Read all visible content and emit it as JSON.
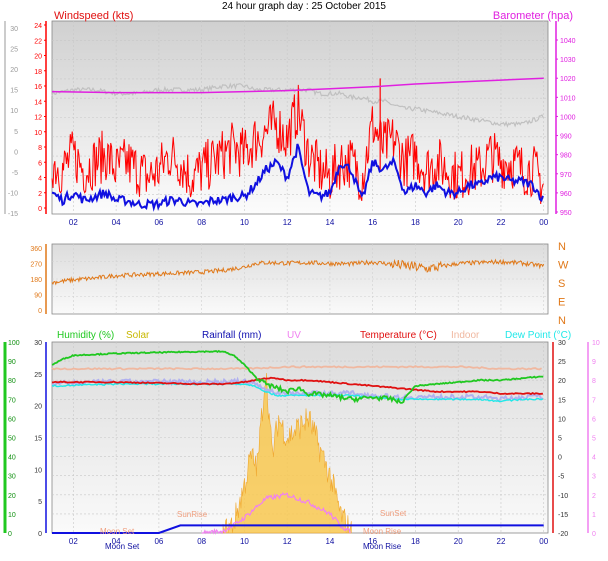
{
  "title": "24 hour graph day : 25 October 2015",
  "colors": {
    "wind_avg": "#1010e0",
    "wind_gust": "#ff0000",
    "barometer": "#e020e0",
    "wind_dir": "#e07818",
    "humidity": "#20c820",
    "solar": "#f8c850",
    "rainfall": "#1010e0",
    "uv": "#f080f0",
    "temperature": "#e01010",
    "indoor": "#f0b8a0",
    "dewpoint": "#20e8e8",
    "grey_trace": "#c0c0c0"
  },
  "chart_data": [
    {
      "type": "line",
      "panel": "wind_barometer",
      "legend_left": "Windspeed (kts)",
      "legend_right": "Barometer (hpa)",
      "left_axis_outer_ticks": [
        "30",
        "25",
        "20",
        "15",
        "10",
        "5",
        "0",
        "-5",
        "-10",
        "-15"
      ],
      "left_axis_inner_ticks": [
        "24",
        "22",
        "20",
        "18",
        "16",
        "14",
        "12",
        "10",
        "8",
        "6",
        "4",
        "2",
        "0"
      ],
      "right_axis_ticks": [
        "1040",
        "1030",
        "1020",
        "1010",
        "1000",
        "990",
        "980",
        "970",
        "960",
        "950"
      ],
      "xlim": [
        1,
        24.2
      ],
      "x_ticks": [
        "02",
        "04",
        "06",
        "08",
        "10",
        "12",
        "14",
        "16",
        "18",
        "20",
        "22",
        "00"
      ],
      "series": [
        {
          "name": "Barometer (hpa)",
          "axis": "barometer",
          "x": [
            1,
            4,
            8,
            10,
            12,
            14,
            16,
            18,
            20,
            22,
            24
          ],
          "values": [
            1013,
            1012.5,
            1012.5,
            1013,
            1013.5,
            1014.5,
            1015.5,
            1017,
            1018,
            1019,
            1020
          ]
        },
        {
          "name": "",
          "axis": "wind",
          "x": [
            1,
            2,
            3,
            4,
            5,
            6,
            7,
            8,
            9,
            9.5,
            10,
            10.5,
            11,
            11.5,
            12,
            12.5,
            13,
            13.5,
            14,
            14.5,
            15,
            15.5,
            16,
            16.5,
            17,
            17.5,
            18,
            19,
            20,
            21,
            22,
            23,
            24
          ],
          "values": [
            15,
            15.5,
            15.5,
            15,
            15,
            15.5,
            15.5,
            15.5,
            16,
            16,
            16,
            15.5,
            15.5,
            15.5,
            15.5,
            15.5,
            15.5,
            15,
            15,
            15,
            14.5,
            14.5,
            14,
            14,
            13.5,
            13,
            13,
            12.5,
            12,
            11.5,
            11,
            11,
            12
          ]
        },
        {
          "name": "",
          "axis": "wind",
          "x": [
            1,
            1.5,
            2,
            2.5,
            3,
            3.5,
            4,
            4.5,
            5,
            5.5,
            6,
            6.5,
            7,
            7.5,
            8,
            8.5,
            9,
            9.5,
            10,
            10.5,
            11,
            11.5,
            12,
            12.5,
            13,
            13.5,
            14,
            14.5,
            15,
            15.5,
            16,
            16.5,
            17,
            17.5,
            18,
            18.5,
            19,
            19.5,
            20,
            20.5,
            21,
            21.5,
            22,
            22.5,
            23,
            23.5,
            24
          ],
          "values": [
            6,
            5,
            7,
            5,
            6,
            7,
            5,
            6,
            5,
            4,
            5,
            7,
            6,
            4,
            5,
            6,
            7,
            8,
            7,
            9,
            10,
            11,
            9,
            13,
            7,
            5,
            4,
            6,
            6,
            4,
            11,
            8,
            9,
            6,
            7,
            5,
            6,
            5,
            4,
            5,
            5,
            7,
            6,
            6,
            5,
            5,
            3
          ]
        },
        {
          "name": "",
          "axis": "wind",
          "x": [
            1,
            1.5,
            2,
            2.5,
            3,
            3.5,
            4,
            4.5,
            5,
            5.5,
            6,
            6.5,
            7,
            7.5,
            8,
            8.5,
            9,
            9.5,
            10,
            10.5,
            11,
            11.5,
            12,
            12.5,
            13,
            13.5,
            14,
            14.5,
            15,
            15.5,
            16,
            16.5,
            17,
            17.5,
            18,
            18.5,
            19,
            19.5,
            20,
            20.5,
            21,
            21.5,
            22,
            22.5,
            23,
            23.5,
            24
          ],
          "values": [
            2,
            1,
            2,
            1,
            1.5,
            2,
            1,
            1,
            0.5,
            0.5,
            0.5,
            1,
            1,
            0.5,
            0.5,
            1,
            1,
            1.5,
            1.5,
            3,
            5,
            6,
            4,
            8,
            2,
            1.5,
            2,
            6,
            5,
            1,
            6,
            5,
            6,
            2,
            3,
            2,
            3,
            2,
            2,
            3,
            3,
            4,
            4,
            3.5,
            3.5,
            3,
            1
          ]
        }
      ]
    },
    {
      "type": "line",
      "panel": "wind_direction",
      "left_axis_ticks": [
        "360",
        "270",
        "180",
        "90",
        "0"
      ],
      "right_axis_ticks": [
        "N",
        "W",
        "S",
        "E",
        "N"
      ],
      "ylim": [
        0,
        360
      ],
      "series": [
        {
          "name": "",
          "x": [
            1,
            2,
            3,
            4,
            5,
            6,
            7,
            8,
            9,
            10,
            10.5,
            11,
            12,
            13,
            14,
            15,
            16,
            17,
            18,
            18.5,
            19,
            20,
            21,
            22,
            23,
            24
          ],
          "values": [
            160,
            175,
            185,
            200,
            205,
            210,
            215,
            220,
            230,
            250,
            270,
            275,
            272,
            275,
            270,
            268,
            278,
            265,
            250,
            240,
            248,
            270,
            275,
            280,
            272,
            255
          ]
        }
      ]
    },
    {
      "type": "line",
      "panel": "temperature_humidity",
      "legend": [
        "Humidity (%)",
        "Solar",
        "Rainfall (mm)",
        "UV",
        "Temperature (°C)",
        "Indoor",
        "Dew Point (°C)"
      ],
      "left_outer_ticks": [
        "100",
        "90",
        "80",
        "70",
        "60",
        "50",
        "40",
        "30",
        "20",
        "10",
        "0"
      ],
      "left_inner_ticks": [
        "30",
        "25",
        "20",
        "15",
        "10",
        "5",
        "0"
      ],
      "right_inner_ticks": [
        "30",
        "25",
        "20",
        "15",
        "10",
        "5",
        "0",
        "-5",
        "-10",
        "-15",
        "-20"
      ],
      "right_outer_ticks": [
        "10",
        "9",
        "8",
        "7",
        "6",
        "5",
        "4",
        "3",
        "2",
        "1",
        "0"
      ],
      "x_ticks": [
        "02",
        "04",
        "06",
        "08",
        "10",
        "12",
        "14",
        "16",
        "18",
        "20",
        "22",
        "00"
      ],
      "annotations": [
        "Moon Set",
        "Moon Rise",
        "SunRise",
        "SunSet"
      ],
      "annotation_repeat_labels": [
        "Moon Set",
        "Moon Rise"
      ],
      "series": [
        {
          "name": "Humidity (%)",
          "axis": "humidity",
          "x": [
            1,
            1.5,
            2,
            4,
            6,
            8,
            9,
            9.5,
            10,
            10.5,
            11,
            11.5,
            12,
            12.5,
            13,
            14,
            15,
            16,
            17,
            17.3,
            17.6,
            18,
            19,
            20,
            21,
            22,
            23,
            24
          ],
          "values": [
            88,
            91,
            93,
            94,
            94.5,
            95,
            95,
            93,
            88,
            82,
            78,
            76,
            74,
            76,
            73,
            72,
            70,
            71,
            70,
            68,
            72,
            77,
            78,
            79,
            80,
            80,
            81,
            82
          ]
        },
        {
          "name": "Indoor",
          "axis": "temp",
          "x": [
            1,
            4,
            8,
            10,
            12,
            14,
            16,
            18,
            20,
            22,
            24
          ],
          "values": [
            23,
            23,
            23,
            23,
            23.5,
            23.5,
            23.5,
            23.5,
            23.5,
            23,
            23
          ]
        },
        {
          "name": "Temperature (°C)",
          "axis": "temp",
          "x": [
            1,
            4,
            8,
            9,
            10,
            10.5,
            11,
            11.5,
            12,
            13,
            14,
            15,
            16,
            17,
            18,
            19,
            20,
            21,
            22,
            23,
            24
          ],
          "values": [
            19.5,
            19.5,
            19,
            19,
            19.5,
            20,
            20.5,
            20.5,
            20,
            20,
            19.5,
            19,
            18.5,
            18,
            17.5,
            17,
            17,
            17,
            16.5,
            16.5,
            16.5
          ]
        },
        {
          "name": "Dew Point (°C)",
          "axis": "temp",
          "x": [
            1,
            4,
            8,
            10,
            10.5,
            11,
            11.5,
            12,
            13,
            14,
            15,
            16,
            17,
            18,
            19,
            20,
            21,
            22,
            23,
            24
          ],
          "values": [
            18.5,
            19,
            19,
            19,
            18.5,
            17,
            16,
            16,
            16,
            16,
            16,
            15.5,
            15,
            15,
            15,
            15,
            15,
            14.5,
            15,
            15
          ]
        },
        {
          "name": "UV",
          "axis": "uv",
          "x": [
            8,
            9,
            9.5,
            10,
            10.5,
            11,
            12,
            13,
            14,
            14.5,
            15
          ],
          "values": [
            0,
            0.1,
            0.4,
            0.8,
            1.3,
            1.8,
            2,
            1.6,
            1,
            0.4,
            0
          ]
        },
        {
          "name": "Solar",
          "axis": "uv",
          "x": [
            9,
            9.5,
            10,
            10.3,
            10.6,
            11,
            11.3,
            11.6,
            12,
            12.5,
            13,
            13.5,
            14,
            14.5,
            15
          ],
          "values": [
            0,
            0.5,
            2.5,
            4,
            3.5,
            8.5,
            4,
            6,
            5,
            5.5,
            6,
            4.5,
            3,
            1,
            0
          ]
        },
        {
          "name": "Rainfall (mm)",
          "axis": "uv",
          "x": [
            1,
            6,
            7,
            24
          ],
          "values": [
            0,
            0,
            0.4,
            0.4
          ]
        }
      ]
    }
  ]
}
